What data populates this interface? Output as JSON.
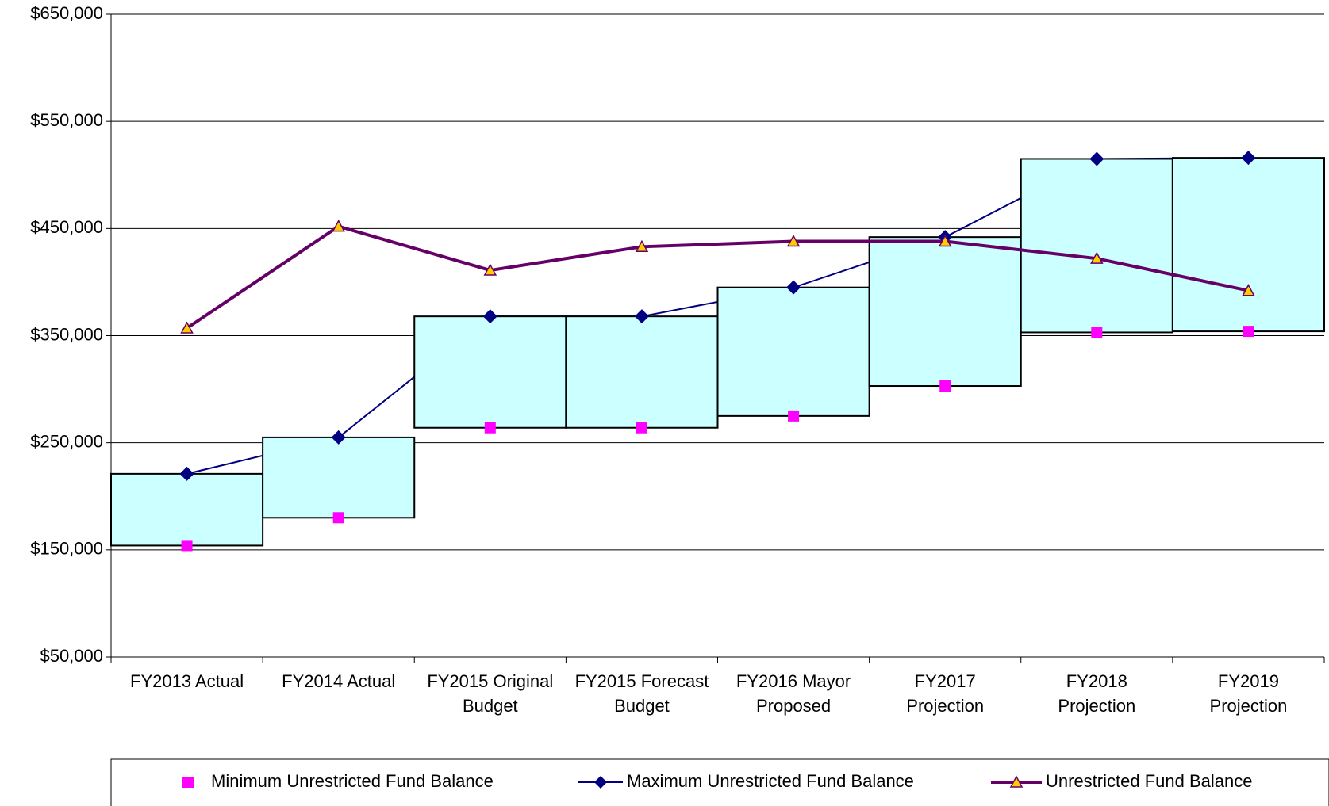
{
  "chart_data": {
    "type": "range-combo",
    "categories": [
      "FY2013 Actual",
      "FY2014 Actual",
      "FY2015 Original Budget",
      "FY2015 Forecast Budget",
      "FY2016 Mayor Proposed",
      "FY2017 Projection",
      "FY2018 Projection",
      "FY2019 Projection"
    ],
    "series": [
      {
        "name": "Minimum Unrestricted Fund Balance",
        "color": "#ff00ff",
        "values": [
          154000,
          180000,
          264000,
          264000,
          275000,
          303000,
          353000,
          354000
        ]
      },
      {
        "name": "Maximum Unrestricted Fund Balance",
        "color": "#000080",
        "values": [
          221000,
          255000,
          368000,
          368000,
          395000,
          442000,
          515000,
          516000
        ]
      },
      {
        "name": "Unrestricted Fund Balance",
        "color": "#660066",
        "values": [
          357000,
          452000,
          411000,
          433000,
          438000,
          438000,
          422000,
          392000
        ]
      }
    ],
    "band_color": "#ccffff",
    "ylim": [
      50000,
      650000
    ],
    "yticks": [
      {
        "value": 50000,
        "label": "$50,000"
      },
      {
        "value": 150000,
        "label": "$150,000"
      },
      {
        "value": 250000,
        "label": "$250,000"
      },
      {
        "value": 350000,
        "label": "$350,000"
      },
      {
        "value": 450000,
        "label": "$450,000"
      },
      {
        "value": 550000,
        "label": "$550,000"
      },
      {
        "value": 650000,
        "label": "$650,000"
      }
    ],
    "grid": true,
    "legend": "bottom"
  }
}
